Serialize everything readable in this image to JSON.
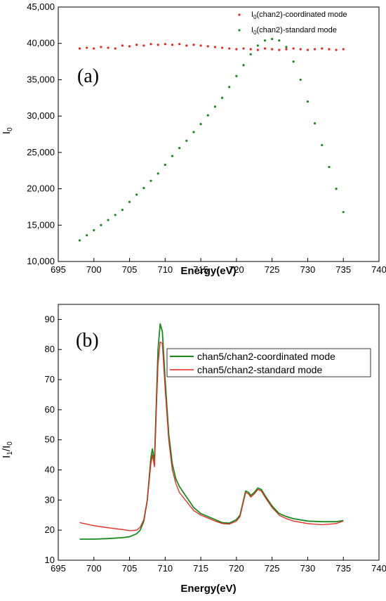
{
  "chart_data": [
    {
      "type": "scatter",
      "panel_label": "(a)",
      "xlabel": "Energy(eV)",
      "ylabel_main": "I",
      "ylabel_sub": "0",
      "xlim": [
        695,
        740
      ],
      "ylim": [
        10000,
        45000
      ],
      "xticks": [
        695,
        700,
        705,
        710,
        715,
        720,
        725,
        730,
        735,
        740
      ],
      "yticks": [
        10000,
        15000,
        20000,
        25000,
        30000,
        35000,
        40000,
        45000
      ],
      "ytick_labels": [
        "10,000",
        "15,000",
        "20,000",
        "25,000",
        "30,000",
        "35,000",
        "40,000",
        "45,000"
      ],
      "grid": false,
      "legend_position": "top-right",
      "series": [
        {
          "name_main": "I",
          "name_sub": "0",
          "name_rest": "(chan2)-coordinated mode",
          "color": "#e8261c",
          "x": [
            698,
            699,
            700,
            701,
            702,
            703,
            704,
            705,
            706,
            707,
            708,
            709,
            710,
            711,
            712,
            713,
            714,
            715,
            716,
            717,
            718,
            719,
            720,
            721,
            722,
            723,
            724,
            725,
            726,
            727,
            728,
            729,
            730,
            731,
            732,
            733,
            734,
            735
          ],
          "y": [
            39300,
            39400,
            39300,
            39500,
            39400,
            39300,
            39700,
            39600,
            39800,
            39700,
            39900,
            39800,
            39900,
            39800,
            39900,
            39700,
            39800,
            39700,
            39600,
            39500,
            39400,
            39300,
            39200,
            39300,
            39200,
            39100,
            39300,
            39200,
            39100,
            39200,
            39300,
            39200,
            39100,
            39200,
            39300,
            39200,
            39100,
            39200
          ]
        },
        {
          "name_main": "I",
          "name_sub": "0",
          "name_rest": "(chan2)-standard mode",
          "color": "#1a8a1a",
          "x": [
            698,
            699,
            700,
            701,
            702,
            703,
            704,
            705,
            706,
            707,
            708,
            709,
            710,
            711,
            712,
            713,
            714,
            715,
            716,
            717,
            718,
            719,
            720,
            721,
            722,
            723,
            724,
            725,
            726,
            727,
            728,
            729,
            730,
            731,
            732,
            733,
            734,
            735
          ],
          "y": [
            12900,
            13600,
            14300,
            15000,
            15700,
            16400,
            17100,
            18200,
            19200,
            20100,
            21100,
            22100,
            23300,
            24500,
            25600,
            26600,
            27800,
            28900,
            30100,
            31300,
            32500,
            34000,
            35500,
            37000,
            38500,
            39700,
            40400,
            40600,
            40400,
            39500,
            37500,
            35000,
            32000,
            29000,
            26000,
            23000,
            20000,
            16800
          ]
        }
      ]
    },
    {
      "type": "line",
      "panel_label": "(b)",
      "xlabel": "Energy(eV)",
      "ylabel_main": "I",
      "ylabel_sub1": "1",
      "ylabel_mid": "/I",
      "ylabel_sub2": "0",
      "xlim": [
        695,
        740
      ],
      "ylim": [
        10,
        95
      ],
      "xticks": [
        695,
        700,
        705,
        710,
        715,
        720,
        725,
        730,
        735,
        740
      ],
      "yticks": [
        10,
        20,
        30,
        40,
        50,
        60,
        70,
        80,
        90
      ],
      "grid": false,
      "legend_position": "top-right",
      "series": [
        {
          "name": "chan5/chan2-coordinated mode",
          "color": "#1a8a1a",
          "x": [
            698,
            700,
            702,
            704,
            705,
            706,
            706.5,
            707,
            707.5,
            708,
            708.2,
            708.5,
            708.8,
            709,
            709.3,
            709.6,
            710,
            710.5,
            711,
            711.5,
            712,
            713,
            714,
            715,
            716,
            717,
            718,
            719,
            720,
            720.5,
            721,
            721.3,
            721.7,
            722,
            722.5,
            723,
            723.5,
            724,
            725,
            726,
            727,
            728,
            730,
            732,
            734,
            735
          ],
          "y": [
            17,
            17,
            17.2,
            17.5,
            17.8,
            18.8,
            20,
            23,
            30,
            44,
            47,
            43,
            65,
            80,
            88.5,
            86,
            70,
            52,
            42,
            37,
            34.5,
            31,
            27.5,
            25.5,
            24.5,
            23.5,
            22.5,
            22.3,
            23.5,
            25,
            30,
            33,
            32.5,
            31.5,
            32.5,
            34,
            33.5,
            31.5,
            28,
            25.5,
            24.5,
            23.8,
            23,
            22.8,
            22.8,
            23.2
          ]
        },
        {
          "name": "chan5/chan2-standard mode",
          "color": "#e8261c",
          "x": [
            698,
            700,
            702,
            704,
            705,
            706,
            706.5,
            707,
            707.5,
            708,
            708.2,
            708.5,
            708.8,
            709,
            709.3,
            709.6,
            710,
            710.5,
            711,
            711.5,
            712,
            713,
            714,
            715,
            716,
            717,
            718,
            719,
            720,
            720.5,
            721,
            721.3,
            721.7,
            722,
            722.5,
            723,
            723.5,
            724,
            725,
            726,
            727,
            728,
            730,
            732,
            734,
            735
          ],
          "y": [
            22.5,
            21.5,
            20.8,
            20.2,
            19.8,
            20,
            21,
            23.5,
            30,
            42,
            45,
            41,
            62,
            75,
            82.5,
            82,
            67,
            50,
            40,
            35.5,
            32.5,
            29.5,
            26.5,
            25,
            24,
            23,
            22.2,
            22,
            23,
            24.5,
            29.5,
            32.5,
            32,
            31,
            32,
            33.5,
            33,
            31,
            27.5,
            25,
            23.8,
            23,
            22.2,
            21.8,
            22.2,
            23
          ]
        }
      ]
    }
  ]
}
